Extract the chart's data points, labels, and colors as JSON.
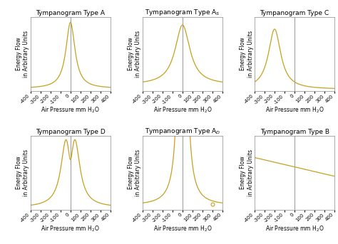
{
  "titles": [
    "Tympanogram Type A",
    "Tympanogram Type A$_S$",
    "Tympanogram Type C",
    "Tympanogram Type D",
    "Tympanogram Type A$_D$",
    "Tympanogram Type B"
  ],
  "line_color": "#C8A020",
  "vert_line_color": "#888888",
  "bg_color": "#FFFFFF",
  "xlabel": "Air Pressure mm H$_2$O",
  "ylabel": "Energy Flow\nin Arbitrary Units",
  "xlim": [
    -400,
    400
  ],
  "xticks": [
    -400,
    -300,
    -200,
    -100,
    0,
    100,
    200,
    300,
    400
  ],
  "title_fontsize": 6.5,
  "label_fontsize": 5.5,
  "tick_fontsize": 5.0
}
